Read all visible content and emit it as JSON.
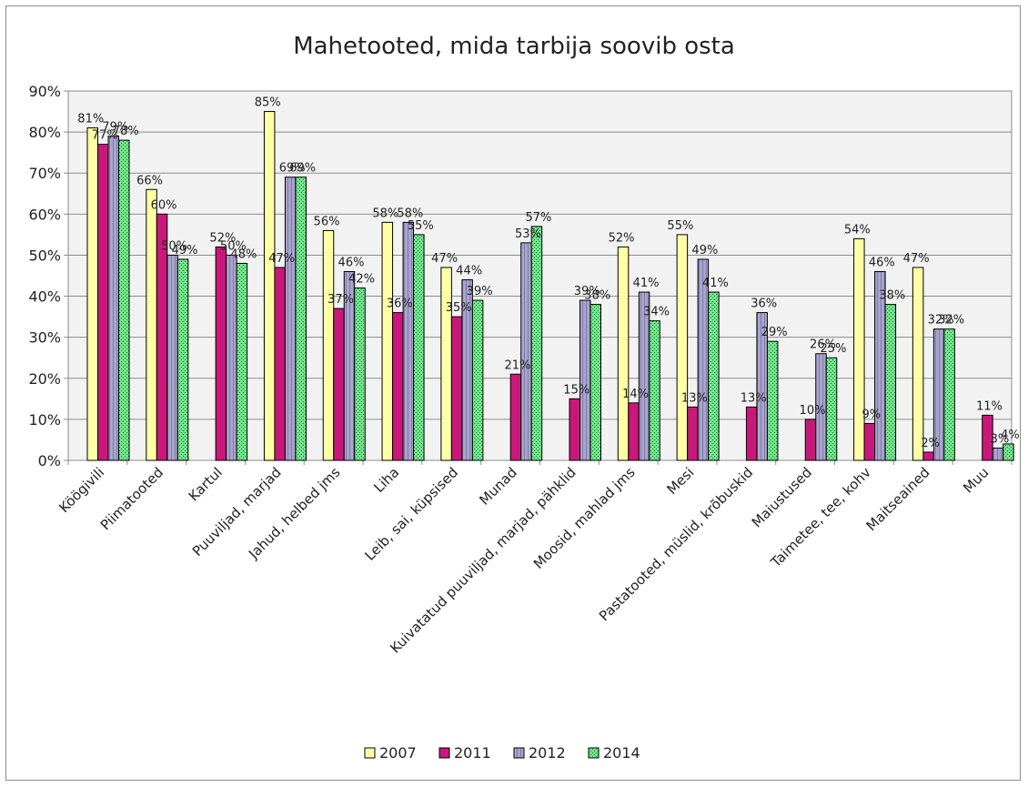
{
  "chart_data": {
    "type": "bar",
    "title": "Mahetooted, mida tarbija soovib osta",
    "xlabel": "",
    "ylabel": "",
    "ylim": [
      0,
      90
    ],
    "yticks": [
      "0%",
      "10%",
      "20%",
      "30%",
      "40%",
      "50%",
      "60%",
      "70%",
      "80%",
      "90%"
    ],
    "grid": true,
    "legend_position": "bottom",
    "categories": [
      "Köögivili",
      "Piimatooted",
      "Kartul",
      "Puuviljad, marjad",
      "Jahud, helbed jms",
      "Liha",
      "Leib, sai, küpsised",
      "Munad",
      "Kuivatatud puuviljad, marjad, pähklid",
      "Moosid, mahlad jms",
      "Mesi",
      "Pastatooted, müslid, krõbuskid",
      "Maiustused",
      "Taimetee, tee, kohv",
      "Maitseained",
      "Muu"
    ],
    "series": [
      {
        "name": "2007",
        "color": "#ffffa6",
        "values": [
          81,
          66,
          null,
          85,
          56,
          58,
          47,
          null,
          null,
          52,
          55,
          null,
          null,
          54,
          47,
          null
        ],
        "labels": [
          "81%",
          "66%",
          "",
          "85%",
          "56%",
          "58%",
          "47%",
          "",
          "",
          "52%",
          "55%",
          "",
          "",
          "54%",
          "47%",
          ""
        ]
      },
      {
        "name": "2011",
        "color": "#c8197a",
        "values": [
          77,
          60,
          52,
          47,
          37,
          36,
          35,
          21,
          15,
          14,
          13,
          13,
          10,
          9,
          2,
          11
        ],
        "labels": [
          "77%",
          "60%",
          "52%",
          "47%",
          "37%",
          "36%",
          "35%",
          "21%",
          "15%",
          "14%",
          "13%",
          "13%",
          "10%",
          "9%",
          "2%",
          "11%"
        ]
      },
      {
        "name": "2012",
        "color": "#9a96c4",
        "values": [
          79,
          50,
          50,
          69,
          46,
          58,
          44,
          53,
          39,
          41,
          49,
          36,
          26,
          46,
          32,
          3
        ],
        "labels": [
          "79%",
          "50%",
          "50%",
          "69%",
          "46%",
          "58%",
          "44%",
          "53%",
          "39%",
          "41%",
          "49%",
          "36%",
          "26%",
          "46%",
          "32%",
          "3%"
        ]
      },
      {
        "name": "2014",
        "color": "#5ee07c",
        "values": [
          78,
          49,
          48,
          69,
          42,
          55,
          39,
          57,
          38,
          34,
          41,
          29,
          25,
          38,
          32,
          4
        ],
        "labels": [
          "78%",
          "49%",
          "48%",
          "69%",
          "42%",
          "55%",
          "39%",
          "57%",
          "38%",
          "34%",
          "41%",
          "29%",
          "25%",
          "38%",
          "32%",
          "4%"
        ]
      }
    ]
  }
}
